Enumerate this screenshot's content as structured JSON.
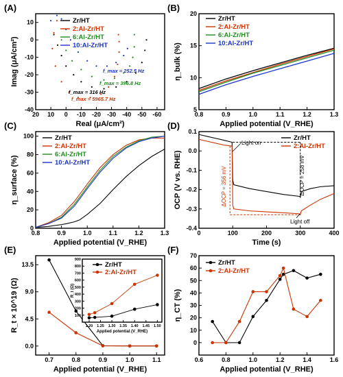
{
  "chart_data": [
    {
      "panel": "(A)",
      "type": "scatter",
      "xlabel": "Real (μA/cm²)",
      "ylabel": "Imag (μA/cm²)",
      "xlim": [
        20,
        -65
      ],
      "ylim": [
        -40,
        15
      ],
      "xticks": [
        20,
        10,
        0,
        -10,
        -20,
        -30,
        -40,
        -50,
        -60
      ],
      "yticks": [
        -40,
        -30,
        -20,
        -10,
        0,
        10
      ],
      "legend_position": "top-center",
      "series": [
        {
          "name": "Zr/HT",
          "color": "#000000",
          "x": [
            8,
            5.5,
            3,
            0,
            -5,
            -10,
            -17,
            -25,
            -33,
            -40,
            -46,
            -50,
            -52,
            -53
          ],
          "y": [
            3,
            -3,
            -9,
            -15,
            -20,
            -24,
            -27,
            -28,
            -27,
            -24,
            -19,
            -13,
            -6,
            0
          ]
        },
        {
          "name": "2:Al-Zr/HT",
          "color": "#cc3300",
          "x": [
            6,
            8,
            9,
            7,
            3,
            -2,
            -8,
            -16,
            -23,
            -28,
            -32,
            -34,
            -35,
            -35,
            -34.5
          ],
          "y": [
            11,
            4,
            -5,
            -15,
            -24,
            -30,
            -33,
            -33,
            -31,
            -27,
            -21,
            -14,
            -7,
            -1,
            3
          ]
        },
        {
          "name": "6:Al-Zr/HT",
          "color": "#228b22",
          "x": [
            3,
            0,
            -4,
            -10,
            -17,
            -25,
            -32,
            -38,
            -42,
            -44,
            -45,
            -45
          ],
          "y": [
            0,
            -6,
            -12,
            -17,
            -21,
            -23,
            -22,
            -19,
            -15,
            -10,
            -4,
            3
          ]
        },
        {
          "name": "10:Al-Zr/HT",
          "color": "#1a33cc",
          "x": [
            10,
            6,
            3,
            0,
            -3,
            -8,
            -14,
            -20,
            -27,
            -33,
            -38,
            -40.5
          ],
          "y": [
            11,
            14,
            12,
            6,
            0,
            -7,
            -12,
            -15,
            -15,
            -13,
            -9,
            -5
          ]
        }
      ],
      "annotations": [
        "f_max = 252.5 Hz",
        "f_max = 396.8 Hz",
        "f_max = 316 Hz",
        "f_max = 5965.7 Hz"
      ]
    },
    {
      "panel": "(B)",
      "type": "line",
      "xlabel": "Applied potential (V_RHE)",
      "ylabel": "η_bulk (%)",
      "xlim": [
        0.8,
        1.3
      ],
      "ylim": [
        5,
        20
      ],
      "xticks": [
        0.8,
        0.9,
        1.0,
        1.1,
        1.2,
        1.3
      ],
      "yticks": [
        5,
        10,
        15,
        20
      ],
      "legend_position": "top-left",
      "series": [
        {
          "name": "Zr/HT",
          "color": "#000000",
          "x": [
            0.8,
            0.9,
            1.0,
            1.1,
            1.2,
            1.3
          ],
          "y": [
            8.3,
            9.8,
            11.1,
            12.3,
            13.5,
            14.6
          ]
        },
        {
          "name": "2:Al-Zr/HT",
          "color": "#cc3300",
          "x": [
            0.8,
            0.9,
            1.0,
            1.1,
            1.2,
            1.3
          ],
          "y": [
            8.0,
            9.5,
            10.8,
            12.1,
            13.3,
            14.5
          ]
        },
        {
          "name": "6:Al-Zr/HT",
          "color": "#228b22",
          "x": [
            0.8,
            0.9,
            1.0,
            1.1,
            1.2,
            1.3
          ],
          "y": [
            7.8,
            9.3,
            10.7,
            11.9,
            13.1,
            14.3
          ]
        },
        {
          "name": "10:Al-Zr/HT",
          "color": "#1a33cc",
          "x": [
            0.8,
            0.9,
            1.0,
            1.1,
            1.2,
            1.3
          ],
          "y": [
            7.4,
            8.9,
            10.2,
            11.4,
            12.6,
            13.8
          ]
        }
      ]
    },
    {
      "panel": "(C)",
      "type": "line",
      "xlabel": "Applied potential (V_RHE)",
      "ylabel": "η_surface (%)",
      "xlim": [
        0.8,
        1.3
      ],
      "ylim": [
        0,
        105
      ],
      "xticks": [
        0.8,
        0.9,
        1.0,
        1.1,
        1.2,
        1.3
      ],
      "yticks": [
        0,
        20,
        40,
        60,
        80,
        100
      ],
      "legend_position": "top-left",
      "series": [
        {
          "name": "Zr/HT",
          "color": "#000000",
          "x": [
            0.8,
            0.85,
            0.9,
            0.92,
            0.95,
            0.97,
            1.0,
            1.05,
            1.1,
            1.15,
            1.2,
            1.25,
            1.3
          ],
          "y": [
            1,
            2,
            4,
            5,
            7,
            9,
            15,
            27,
            42,
            56,
            68,
            78,
            86
          ]
        },
        {
          "name": "2:Al-Zr/HT",
          "color": "#cc3300",
          "x": [
            0.8,
            0.85,
            0.9,
            0.95,
            1.0,
            1.05,
            1.1,
            1.15,
            1.2,
            1.25,
            1.3
          ],
          "y": [
            1,
            6,
            14,
            29,
            48,
            66,
            80,
            90,
            96,
            98,
            98
          ]
        },
        {
          "name": "6:Al-Zr/HT",
          "color": "#228b22",
          "x": [
            0.8,
            0.85,
            0.9,
            0.95,
            1.0,
            1.05,
            1.1,
            1.15,
            1.2,
            1.25,
            1.3
          ],
          "y": [
            1,
            5,
            12,
            26,
            45,
            63,
            78,
            88,
            95,
            99,
            100
          ]
        },
        {
          "name": "10:Al-Zr/HT",
          "color": "#1a33cc",
          "x": [
            0.8,
            0.85,
            0.9,
            0.95,
            1.0,
            1.05,
            1.1,
            1.15,
            1.2,
            1.25,
            1.3
          ],
          "y": [
            1,
            5,
            11,
            24,
            43,
            61,
            76,
            87,
            94,
            98,
            100
          ]
        }
      ]
    },
    {
      "panel": "(D)",
      "type": "line",
      "xlabel": "Time (s)",
      "ylabel": "OCP (V vs. RHE)",
      "xlim": [
        0,
        400
      ],
      "ylim": [
        -0.4,
        0.1
      ],
      "xticks": [
        0,
        100,
        200,
        300,
        400
      ],
      "yticks": [
        -0.4,
        -0.3,
        -0.2,
        -0.1,
        0.0,
        0.1
      ],
      "legend_position": "top-right",
      "series": [
        {
          "name": "Zr/HT",
          "color": "#000000",
          "x": [
            0,
            25,
            50,
            75,
            98,
            100,
            103,
            150,
            200,
            250,
            298,
            300,
            303,
            330,
            360,
            400
          ],
          "y": [
            0.085,
            0.075,
            0.065,
            0.055,
            0.045,
            -0.15,
            -0.175,
            -0.195,
            -0.21,
            -0.225,
            -0.235,
            -0.24,
            -0.21,
            -0.195,
            -0.185,
            -0.18
          ]
        },
        {
          "name": "2:Al-Zr/HT",
          "color": "#cc3300",
          "x": [
            0,
            25,
            50,
            75,
            98,
            100,
            103,
            150,
            200,
            250,
            298,
            300,
            303,
            330,
            360,
            400
          ],
          "y": [
            0.06,
            0.05,
            0.04,
            0.03,
            0.025,
            -0.28,
            -0.3,
            -0.31,
            -0.315,
            -0.32,
            -0.325,
            -0.33,
            -0.31,
            -0.28,
            -0.25,
            -0.22
          ]
        }
      ],
      "annotations": [
        "Light on",
        "Light off",
        "ΔOCP = 356 mV",
        "ΔOCP = 258 mV"
      ]
    },
    {
      "panel": "(E)",
      "type": "line",
      "xlabel": "Applied potential (V_RHE)",
      "ylabel": "R_t × 10^19 (Ω)",
      "xlim": [
        0.65,
        1.13
      ],
      "ylim": [
        -1.5,
        15
      ],
      "xticks": [
        0.7,
        0.8,
        0.9,
        1.0,
        1.1
      ],
      "yticks": [
        0.0,
        4.5,
        9.0,
        13.5
      ],
      "series": [
        {
          "name": "Zr/HT",
          "color": "#000000",
          "x": [
            0.7,
            0.8,
            0.9,
            1.0,
            1.1
          ],
          "y": [
            14.3,
            5.8,
            0.05,
            0.02,
            0.01
          ]
        },
        {
          "name": "2:Al-Zr/HT",
          "color": "#cc3300",
          "x": [
            0.7,
            0.8,
            0.9,
            1.0,
            1.1
          ],
          "y": [
            5.6,
            2.2,
            0.03,
            0.01,
            0.01
          ]
        }
      ],
      "inset": {
        "ylabel": "R_t (Ω)",
        "xlabel": "Applied potential (V_RHE)",
        "xlim": [
          1.17,
          1.52
        ],
        "ylim": [
          0,
          900
        ],
        "xticks": [
          1.2,
          1.25,
          1.3,
          1.35,
          1.4,
          1.45,
          1.5
        ],
        "yticks": [
          100,
          200,
          300,
          400,
          500,
          600,
          700,
          800,
          900
        ],
        "legend_position": "top-left",
        "series": [
          {
            "name": "Zr/HT",
            "color": "#000000",
            "x": [
              1.2,
              1.225,
              1.3,
              1.4,
              1.5
            ],
            "y": [
              62,
              68,
              85,
              185,
              250
            ]
          },
          {
            "name": "2:Al-Zr/HT",
            "color": "#cc3300",
            "x": [
              1.2,
              1.225,
              1.3,
              1.4,
              1.5
            ],
            "y": [
              110,
              135,
              265,
              540,
              670
            ]
          }
        ]
      }
    },
    {
      "panel": "(F)",
      "type": "line",
      "xlabel": "Applied potential (V_RHE)",
      "ylabel": "η_CT (%)",
      "xlim": [
        0.6,
        1.6
      ],
      "ylim": [
        -10,
        70
      ],
      "xticks": [
        0.6,
        0.8,
        1.0,
        1.2,
        1.4,
        1.6
      ],
      "yticks": [
        0,
        10,
        20,
        30,
        40,
        50,
        60,
        70
      ],
      "legend_position": "top-left",
      "series": [
        {
          "name": "Zr/HT",
          "color": "#000000",
          "x": [
            0.7,
            0.8,
            0.9,
            1.0,
            1.1,
            1.2,
            1.225,
            1.3,
            1.4,
            1.5
          ],
          "y": [
            17,
            0,
            0,
            21,
            34,
            51,
            55,
            58,
            52,
            55
          ]
        },
        {
          "name": "2:Al-Zr/HT",
          "color": "#cc3300",
          "x": [
            0.7,
            0.8,
            0.9,
            1.0,
            1.1,
            1.2,
            1.225,
            1.3,
            1.4,
            1.5
          ],
          "y": [
            0,
            0,
            17,
            41,
            41,
            54,
            60,
            27,
            21,
            34
          ]
        }
      ]
    }
  ]
}
